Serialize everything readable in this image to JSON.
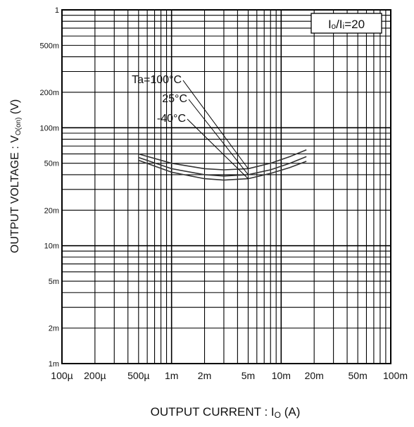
{
  "chart_data": {
    "type": "line",
    "title": "",
    "xlabel": "OUTPUT  CURRENT : I",
    "xlabel_sub": "O",
    "xlabel_unit": " (A)",
    "ylabel": "OUTPUT  VOLTAGE : V",
    "ylabel_sub": "O(on)",
    "ylabel_unit": " (V)",
    "x_scale": "log",
    "y_scale": "log",
    "xlim": [
      0.0001,
      0.1
    ],
    "ylim": [
      0.001,
      1
    ],
    "grid": true,
    "x_ticks": [
      {
        "value": 0.0001,
        "label": "100µ"
      },
      {
        "value": 0.0002,
        "label": "200µ"
      },
      {
        "value": 0.0005,
        "label": "500µ"
      },
      {
        "value": 0.001,
        "label": "1m"
      },
      {
        "value": 0.002,
        "label": "2m"
      },
      {
        "value": 0.005,
        "label": "5m"
      },
      {
        "value": 0.01,
        "label": "10m"
      },
      {
        "value": 0.02,
        "label": "20m"
      },
      {
        "value": 0.05,
        "label": "50m"
      },
      {
        "value": 0.1,
        "label": "100m"
      }
    ],
    "y_ticks": [
      {
        "value": 1,
        "label": "1"
      },
      {
        "value": 0.5,
        "label": "500m"
      },
      {
        "value": 0.2,
        "label": "200m"
      },
      {
        "value": 0.1,
        "label": "100m"
      },
      {
        "value": 0.05,
        "label": "50m"
      },
      {
        "value": 0.02,
        "label": "20m"
      },
      {
        "value": 0.01,
        "label": "10m"
      },
      {
        "value": 0.005,
        "label": "5m"
      },
      {
        "value": 0.002,
        "label": "2m"
      },
      {
        "value": 0.001,
        "label": "1m"
      }
    ],
    "annotation_box": "Iₒ/Iᵢ=20",
    "series": [
      {
        "name": "Ta=100°C",
        "x": [
          0.0005,
          0.001,
          0.002,
          0.003,
          0.005,
          0.008,
          0.012,
          0.017
        ],
        "y": [
          0.06,
          0.05,
          0.045,
          0.044,
          0.045,
          0.05,
          0.057,
          0.065
        ]
      },
      {
        "name": "25°C",
        "x": [
          0.0005,
          0.001,
          0.002,
          0.003,
          0.005,
          0.008,
          0.012,
          0.017
        ],
        "y": [
          0.056,
          0.045,
          0.04,
          0.039,
          0.04,
          0.044,
          0.05,
          0.057
        ]
      },
      {
        "name": "-40°C",
        "x": [
          0.0005,
          0.001,
          0.002,
          0.003,
          0.005,
          0.008,
          0.012,
          0.017
        ],
        "y": [
          0.053,
          0.042,
          0.037,
          0.036,
          0.037,
          0.041,
          0.046,
          0.052
        ]
      }
    ]
  }
}
